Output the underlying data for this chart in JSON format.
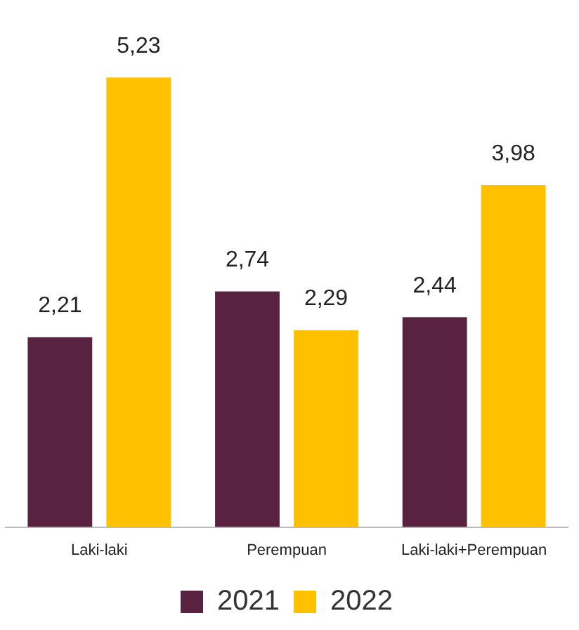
{
  "chart_data": {
    "type": "bar",
    "categories": [
      "Laki-laki",
      "Perempuan",
      "Laki-laki+Perempuan"
    ],
    "series": [
      {
        "name": "2021",
        "color": "#582240",
        "values": [
          2.21,
          2.74,
          2.44
        ],
        "value_labels": [
          "2,21",
          "2,74",
          "2,44"
        ]
      },
      {
        "name": "2022",
        "color": "#ffc000",
        "values": [
          5.23,
          2.29,
          3.98
        ],
        "value_labels": [
          "5,23",
          "2,29",
          "3,98"
        ]
      }
    ],
    "tick_labels": "x",
    "grid": false,
    "legend": "bottom"
  }
}
